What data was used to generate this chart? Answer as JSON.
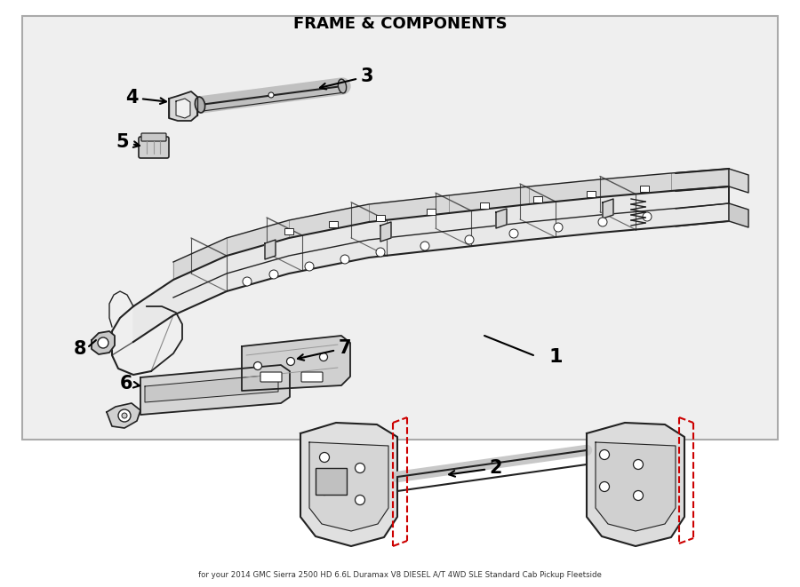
{
  "title": "FRAME & COMPONENTS",
  "subtitle": "for your 2014 GMC Sierra 2500 HD 6.6L Duramax V8 DIESEL A/T 4WD SLE Standard Cab Pickup Fleetside",
  "background_color": "#ffffff",
  "panel_color": "#f0f0f0",
  "line_color": "#222222",
  "label_color": "#000000",
  "red_dashed_color": "#cc0000"
}
